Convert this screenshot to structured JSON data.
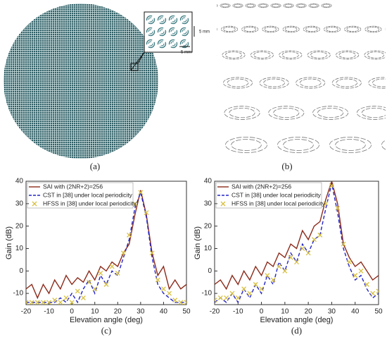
{
  "panels": {
    "a": {
      "label": "(a)",
      "dim_labels": [
        "5 mm",
        "5 mm"
      ]
    },
    "b": {
      "label": "(b)"
    }
  },
  "chart_data": [
    {
      "type": "line",
      "label": "(c)",
      "xlabel": "Elevation angle (deg)",
      "ylabel": "Gain (dB)",
      "xlim": [
        -20,
        50
      ],
      "xticks": [
        -20,
        -10,
        0,
        10,
        20,
        30,
        40,
        50
      ],
      "ylim": [
        -15,
        40
      ],
      "yticks": [
        -10,
        0,
        10,
        20,
        30,
        40
      ],
      "x": [
        -20,
        -17.5,
        -15,
        -12.5,
        -10,
        -7.5,
        -5,
        -2.5,
        0,
        2.5,
        5,
        7.5,
        10,
        12.5,
        15,
        17.5,
        20,
        22.5,
        25,
        27.5,
        30,
        32.5,
        35,
        37.5,
        40,
        42.5,
        45,
        47.5,
        50
      ],
      "series": [
        {
          "name": "SAI with (2NR+2)=256",
          "color": "#8b2a1a",
          "style": "solid",
          "values": [
            -8,
            -6,
            -12,
            -6,
            -10,
            -4,
            -8,
            -2,
            -6,
            -3,
            -5,
            0,
            -4,
            2,
            0,
            4,
            2,
            8,
            12,
            25,
            36,
            25,
            8,
            -2,
            2,
            -8,
            -4,
            -8,
            -6
          ]
        },
        {
          "name": "CST in [38] under local periodicity",
          "color": "#2424c8",
          "style": "dashed",
          "values": [
            -14,
            -14,
            -14,
            -14,
            -14,
            -14,
            -12,
            -14,
            -10,
            -14,
            -8,
            -4,
            -10,
            -2,
            -6,
            0,
            -2,
            6,
            14,
            28,
            35,
            24,
            6,
            -6,
            -10,
            -12,
            -14,
            -14,
            -14
          ]
        },
        {
          "name": "HFSS in [38] under local periodicity",
          "color": "#d8c040",
          "style": "marker",
          "values": [
            -14,
            -14,
            -14,
            -14,
            -14,
            -13,
            -14,
            -12,
            -14,
            -9,
            -12,
            -5,
            -8,
            -1,
            -6,
            2,
            -1,
            8,
            16,
            30,
            35,
            26,
            8,
            -4,
            -8,
            -10,
            -13,
            -14,
            -14
          ]
        }
      ]
    },
    {
      "type": "line",
      "label": "(d)",
      "xlabel": "Elevation angle (deg)",
      "ylabel": "Gain (dB)",
      "xlim": [
        -20,
        50
      ],
      "xticks": [
        -20,
        -10,
        0,
        10,
        20,
        30,
        40,
        50
      ],
      "ylim": [
        -15,
        40
      ],
      "yticks": [
        -10,
        0,
        10,
        20,
        30,
        40
      ],
      "x": [
        -20,
        -17.5,
        -15,
        -12.5,
        -10,
        -7.5,
        -5,
        -2.5,
        0,
        2.5,
        5,
        7.5,
        10,
        12.5,
        15,
        17.5,
        20,
        22.5,
        25,
        27.5,
        30,
        32.5,
        35,
        37.5,
        40,
        42.5,
        45,
        47.5,
        50
      ],
      "series": [
        {
          "name": "SAI with (2NR+2)=256",
          "color": "#8b2a1a",
          "style": "solid",
          "values": [
            -6,
            -4,
            -8,
            -2,
            -6,
            0,
            -4,
            2,
            -2,
            4,
            2,
            8,
            6,
            12,
            10,
            18,
            14,
            20,
            22,
            32,
            40,
            30,
            12,
            6,
            2,
            4,
            0,
            -4,
            -2
          ]
        },
        {
          "name": "CST in [38] under local periodicity",
          "color": "#2424c8",
          "style": "dashed",
          "values": [
            -14,
            -12,
            -14,
            -10,
            -14,
            -8,
            -12,
            -6,
            -10,
            -2,
            -6,
            4,
            0,
            8,
            4,
            12,
            8,
            14,
            16,
            28,
            39,
            26,
            10,
            2,
            -4,
            -2,
            -8,
            -12,
            -10
          ]
        },
        {
          "name": "HFSS in [38] under local periodicity",
          "color": "#d8c040",
          "style": "marker",
          "values": [
            -13,
            -12,
            -12,
            -10,
            -12,
            -8,
            -10,
            -6,
            -8,
            -2,
            -4,
            2,
            0,
            6,
            4,
            10,
            8,
            14,
            16,
            30,
            38,
            28,
            12,
            4,
            -2,
            0,
            -6,
            -10,
            -9
          ]
        }
      ]
    }
  ]
}
